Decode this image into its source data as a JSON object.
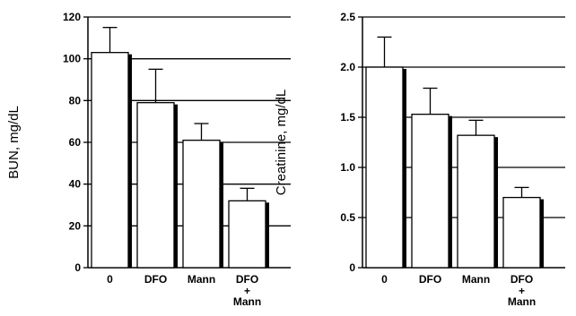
{
  "chart_data": [
    {
      "type": "bar",
      "categories": [
        "0",
        "DFO",
        "Mann",
        "DFO\n+\nMann"
      ],
      "values": [
        103,
        79,
        61,
        32
      ],
      "errors": [
        12,
        16,
        8,
        6
      ],
      "ylabel": "BUN, mg/dL",
      "ylim": [
        0,
        120
      ],
      "yticks": [
        "0",
        "20",
        "40",
        "60",
        "80",
        "100",
        "120"
      ],
      "grid": true,
      "bar_color": "#ffffff",
      "shadow_color": "#000000"
    },
    {
      "type": "bar",
      "categories": [
        "0",
        "DFO",
        "Mann",
        "DFO\n+\nMann"
      ],
      "values": [
        2.0,
        1.53,
        1.32,
        0.7
      ],
      "errors": [
        0.3,
        0.26,
        0.15,
        0.1
      ],
      "ylabel": "Creatinine, mg/dL",
      "ylim": [
        0,
        2.5
      ],
      "yticks": [
        "0",
        "0.5",
        "1.0",
        "1.5",
        "2.0",
        "2.5"
      ],
      "grid": true,
      "bar_color": "#ffffff",
      "shadow_color": "#000000"
    }
  ]
}
